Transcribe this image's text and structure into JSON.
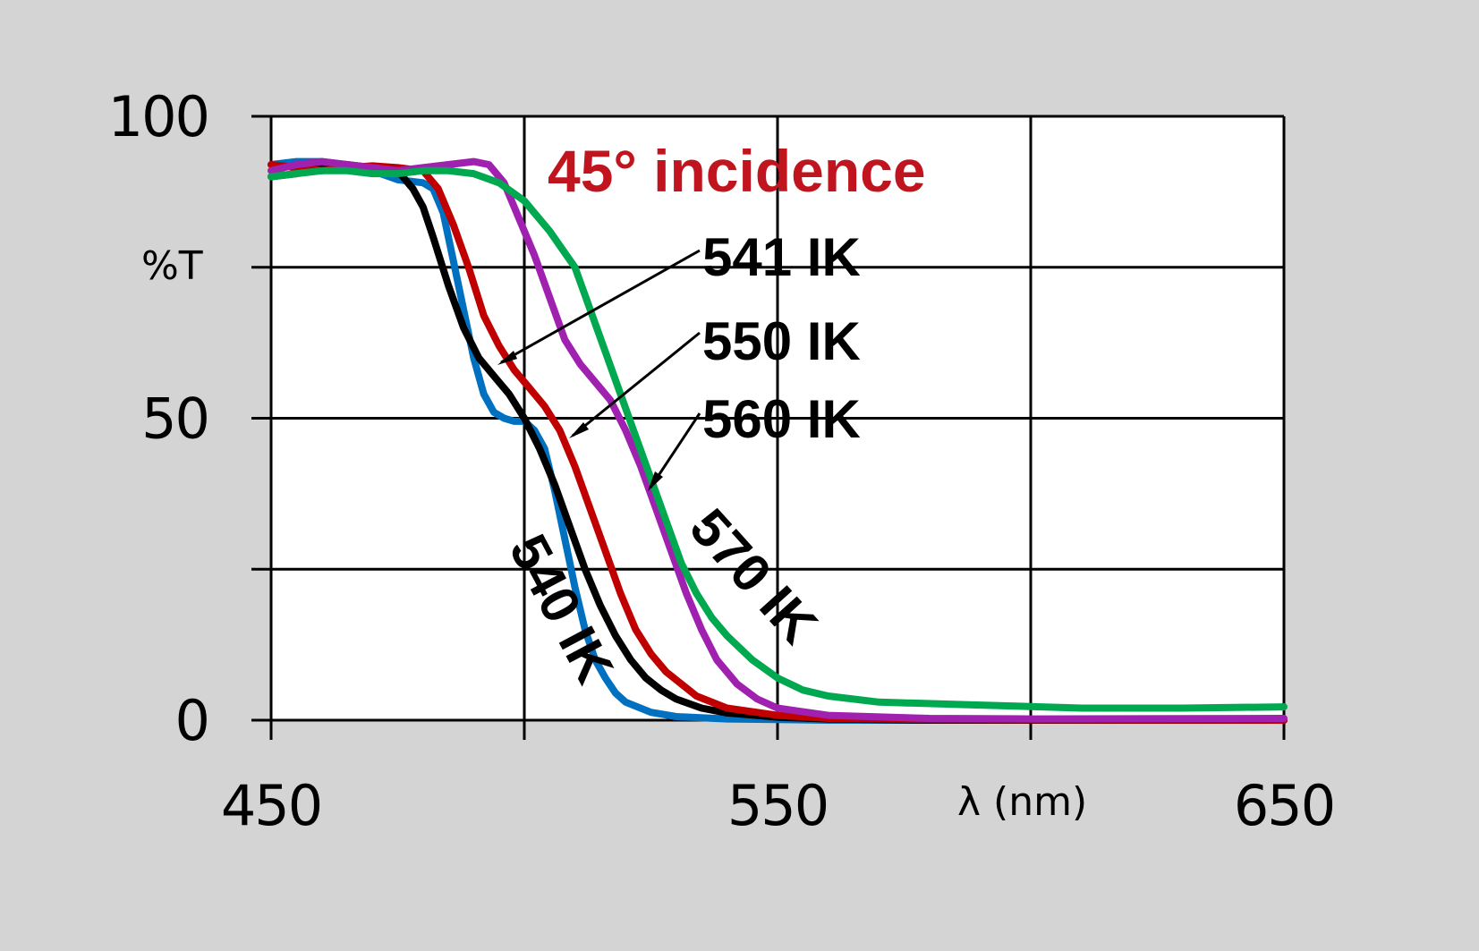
{
  "chart_data": {
    "type": "line",
    "title": "45° incidence",
    "title_color": "#c0141e",
    "xlabel": "λ (nm)",
    "ylabel": "%T",
    "xlim": [
      450,
      650
    ],
    "ylim": [
      0,
      100
    ],
    "x_ticks": [
      450,
      550,
      650
    ],
    "y_ticks": [
      0,
      50,
      100
    ],
    "x_gridlines": [
      450,
      500,
      550,
      600,
      650
    ],
    "y_gridlines": [
      0,
      25,
      50,
      75,
      100
    ],
    "grid": true,
    "series": [
      {
        "name": "540 IK",
        "color": "#0070c0",
        "points": [
          [
            450,
            92
          ],
          [
            455,
            92.5
          ],
          [
            460,
            92.5
          ],
          [
            465,
            92
          ],
          [
            470,
            91
          ],
          [
            475,
            89.5
          ],
          [
            480,
            89
          ],
          [
            482,
            88
          ],
          [
            484,
            84
          ],
          [
            486,
            76
          ],
          [
            488,
            68
          ],
          [
            490,
            60
          ],
          [
            492,
            54
          ],
          [
            494,
            51
          ],
          [
            496,
            50
          ],
          [
            498,
            49.5
          ],
          [
            500,
            49.5
          ],
          [
            502,
            48
          ],
          [
            504,
            45
          ],
          [
            506,
            38
          ],
          [
            508,
            30
          ],
          [
            510,
            22
          ],
          [
            512,
            15
          ],
          [
            514,
            10
          ],
          [
            516,
            7
          ],
          [
            518,
            4.5
          ],
          [
            520,
            3
          ],
          [
            525,
            1.3
          ],
          [
            530,
            0.6
          ],
          [
            540,
            0.2
          ],
          [
            560,
            0
          ],
          [
            650,
            0
          ]
        ]
      },
      {
        "name": "541 IK",
        "color": "#000000",
        "points": [
          [
            450,
            90
          ],
          [
            455,
            90.5
          ],
          [
            460,
            91.5
          ],
          [
            465,
            92
          ],
          [
            470,
            91.5
          ],
          [
            475,
            91
          ],
          [
            478,
            88
          ],
          [
            480,
            85
          ],
          [
            482,
            80
          ],
          [
            485,
            72
          ],
          [
            488,
            65
          ],
          [
            491,
            60
          ],
          [
            494,
            57
          ],
          [
            497,
            54
          ],
          [
            500,
            50
          ],
          [
            503,
            45
          ],
          [
            506,
            39
          ],
          [
            509,
            32
          ],
          [
            512,
            25
          ],
          [
            515,
            19
          ],
          [
            518,
            14
          ],
          [
            521,
            10
          ],
          [
            524,
            7
          ],
          [
            527,
            5
          ],
          [
            530,
            3.5
          ],
          [
            535,
            2
          ],
          [
            540,
            1.2
          ],
          [
            550,
            0.5
          ],
          [
            560,
            0.2
          ],
          [
            580,
            0
          ],
          [
            650,
            0
          ]
        ]
      },
      {
        "name": "550 IK",
        "color": "#c00000",
        "points": [
          [
            450,
            92
          ],
          [
            455,
            91.5
          ],
          [
            460,
            91
          ],
          [
            465,
            91.5
          ],
          [
            470,
            91.8
          ],
          [
            475,
            91.5
          ],
          [
            480,
            91
          ],
          [
            483,
            88
          ],
          [
            486,
            82
          ],
          [
            489,
            75
          ],
          [
            492,
            67
          ],
          [
            495,
            62
          ],
          [
            498,
            58
          ],
          [
            501,
            55
          ],
          [
            504,
            52
          ],
          [
            507,
            48
          ],
          [
            510,
            42
          ],
          [
            513,
            35
          ],
          [
            516,
            28
          ],
          [
            519,
            21
          ],
          [
            522,
            15
          ],
          [
            525,
            11
          ],
          [
            528,
            8
          ],
          [
            531,
            6
          ],
          [
            534,
            4
          ],
          [
            540,
            2
          ],
          [
            550,
            0.8
          ],
          [
            560,
            0.3
          ],
          [
            580,
            0.1
          ],
          [
            650,
            0
          ]
        ]
      },
      {
        "name": "560 IK",
        "color": "#a020b0",
        "points": [
          [
            450,
            91
          ],
          [
            455,
            92
          ],
          [
            460,
            92.5
          ],
          [
            465,
            92
          ],
          [
            470,
            91.5
          ],
          [
            475,
            91
          ],
          [
            480,
            91.5
          ],
          [
            485,
            92
          ],
          [
            490,
            92.5
          ],
          [
            493,
            92
          ],
          [
            496,
            89
          ],
          [
            499,
            83
          ],
          [
            502,
            77
          ],
          [
            505,
            70
          ],
          [
            508,
            63
          ],
          [
            511,
            59
          ],
          [
            514,
            56
          ],
          [
            517,
            53
          ],
          [
            520,
            48
          ],
          [
            523,
            42
          ],
          [
            526,
            35
          ],
          [
            529,
            28
          ],
          [
            532,
            21
          ],
          [
            535,
            15
          ],
          [
            538,
            10
          ],
          [
            542,
            6
          ],
          [
            546,
            3.5
          ],
          [
            550,
            2
          ],
          [
            560,
            0.8
          ],
          [
            580,
            0.3
          ],
          [
            600,
            0.2
          ],
          [
            650,
            0.3
          ]
        ]
      },
      {
        "name": "570 IK",
        "color": "#00a84f",
        "points": [
          [
            450,
            90
          ],
          [
            455,
            90.5
          ],
          [
            460,
            91
          ],
          [
            465,
            91
          ],
          [
            470,
            90.5
          ],
          [
            475,
            90.5
          ],
          [
            480,
            91
          ],
          [
            485,
            91
          ],
          [
            490,
            90.5
          ],
          [
            495,
            89
          ],
          [
            500,
            86
          ],
          [
            505,
            81
          ],
          [
            510,
            75
          ],
          [
            513,
            68
          ],
          [
            516,
            61
          ],
          [
            519,
            54
          ],
          [
            522,
            47
          ],
          [
            525,
            40
          ],
          [
            528,
            33
          ],
          [
            531,
            26
          ],
          [
            534,
            21
          ],
          [
            537,
            17
          ],
          [
            540,
            14
          ],
          [
            545,
            10
          ],
          [
            550,
            7
          ],
          [
            555,
            5
          ],
          [
            560,
            4
          ],
          [
            570,
            3
          ],
          [
            590,
            2.5
          ],
          [
            610,
            2
          ],
          [
            630,
            2
          ],
          [
            650,
            2.2
          ]
        ]
      }
    ],
    "labels": [
      {
        "text": "541 IK",
        "series": "541 IK",
        "at": [
          495,
          60
        ]
      },
      {
        "text": "550 IK",
        "series": "550 IK",
        "at": [
          509,
          47
        ]
      },
      {
        "text": "560 IK",
        "series": "560 IK",
        "at": [
          524,
          38
        ]
      },
      {
        "text": "540 IK",
        "series": "540 IK",
        "rotated": true
      },
      {
        "text": "570 IK",
        "series": "570 IK",
        "rotated": true
      }
    ]
  }
}
